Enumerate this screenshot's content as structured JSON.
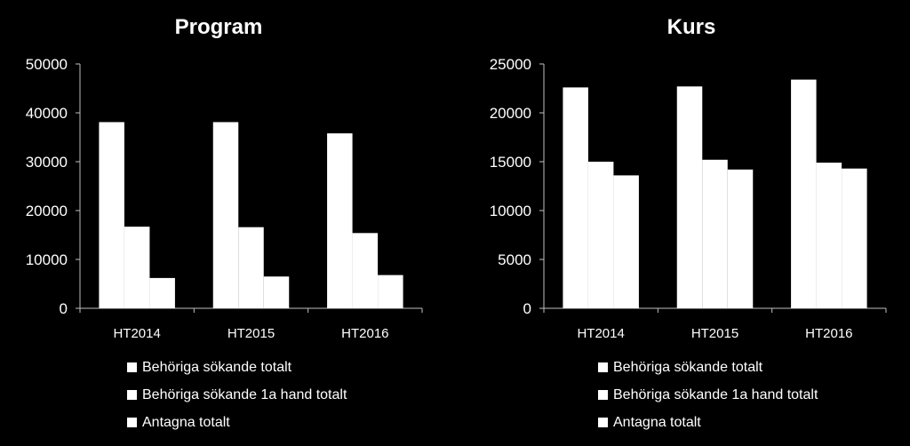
{
  "chart_data": [
    {
      "type": "bar",
      "title": "Program",
      "categories": [
        "HT2014",
        "HT2015",
        "HT2016"
      ],
      "series": [
        {
          "name": "Behöriga sökande totalt",
          "values": [
            38100,
            38100,
            35800
          ]
        },
        {
          "name": "Behöriga sökande 1a hand totalt",
          "values": [
            16700,
            16600,
            15400
          ]
        },
        {
          "name": "Antagna totalt",
          "values": [
            6200,
            6500,
            6800
          ]
        }
      ],
      "ylim": [
        0,
        50000
      ],
      "yticks": [
        "0",
        "10000",
        "20000",
        "30000",
        "40000",
        "50000"
      ],
      "grid": false,
      "legend": "bottom",
      "bar_color": "#ffffff",
      "background": "#000000"
    },
    {
      "type": "bar",
      "title": "Kurs",
      "categories": [
        "HT2014",
        "HT2015",
        "HT2016"
      ],
      "series": [
        {
          "name": "Behöriga sökande totalt",
          "values": [
            22600,
            22700,
            23400
          ]
        },
        {
          "name": "Behöriga sökande 1a hand totalt",
          "values": [
            15000,
            15200,
            14900
          ]
        },
        {
          "name": "Antagna totalt",
          "values": [
            13600,
            14200,
            14300
          ]
        }
      ],
      "ylim": [
        0,
        25000
      ],
      "yticks": [
        "0",
        "5000",
        "10000",
        "15000",
        "20000",
        "25000"
      ],
      "grid": false,
      "legend": "bottom",
      "bar_color": "#ffffff",
      "background": "#000000"
    }
  ]
}
